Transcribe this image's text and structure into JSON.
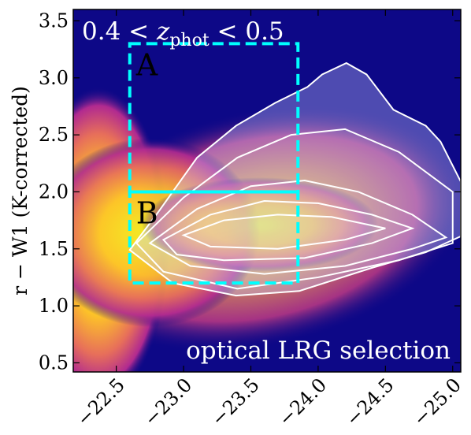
{
  "chart_data": {
    "type": "density-contour",
    "title": [
      "0.4 < ",
      "z",
      "phot",
      " < 0.5"
    ],
    "annotation": "optical LRG selection",
    "y_label": "r − W1 (K-corrected)",
    "xlim": [
      -22.18,
      -25.06
    ],
    "ylim": [
      0.42,
      3.6
    ],
    "xticks": [
      {
        "value": -22.5,
        "label": "−22.5"
      },
      {
        "value": -23.0,
        "label": "−23.0"
      },
      {
        "value": -23.5,
        "label": "−23.5"
      },
      {
        "value": -24.0,
        "label": "−24.0"
      },
      {
        "value": -24.5,
        "label": "−24.5"
      },
      {
        "value": -25.0,
        "label": "−25.0"
      }
    ],
    "yticks": [
      0.5,
      {
        "value": 1.0,
        "label": "1.0"
      },
      1.5,
      {
        "value": 2.0,
        "label": "2.0"
      },
      2.5,
      {
        "value": 3.0,
        "label": "3.0"
      },
      3.5
    ],
    "contour_color": "#ffffff",
    "contours": [
      {
        "x": [
          -22.6,
          -22.81,
          -23.1,
          -23.39,
          -23.68,
          -23.92,
          -24.03,
          -24.21,
          -24.36,
          -24.56,
          -24.8,
          -24.91,
          -25.06,
          -25.06,
          -24.8,
          -24.39,
          -23.86,
          -23.39,
          -22.92
        ],
        "y": [
          1.49,
          1.82,
          2.3,
          2.58,
          2.78,
          2.92,
          3.03,
          3.13,
          3.03,
          2.72,
          2.58,
          2.44,
          2.09,
          1.61,
          1.47,
          1.33,
          1.13,
          1.09,
          1.2
        ]
      },
      {
        "x": [
          -22.65,
          -23.0,
          -23.4,
          -23.8,
          -24.2,
          -24.6,
          -25.0,
          -25.0,
          -24.6,
          -24.0,
          -23.4,
          -22.85
        ],
        "y": [
          1.55,
          1.95,
          2.3,
          2.5,
          2.55,
          2.35,
          2.0,
          1.55,
          1.4,
          1.25,
          1.15,
          1.3
        ]
      },
      {
        "x": [
          -22.75,
          -23.1,
          -23.5,
          -23.9,
          -24.3,
          -24.7,
          -24.95,
          -24.7,
          -24.2,
          -23.6,
          -23.05
        ],
        "y": [
          1.55,
          1.85,
          2.05,
          2.1,
          2.0,
          1.8,
          1.6,
          1.5,
          1.35,
          1.28,
          1.35
        ]
      },
      {
        "x": [
          -22.85,
          -23.2,
          -23.6,
          -24.0,
          -24.4,
          -24.7,
          -24.4,
          -23.9,
          -23.3,
          -22.95
        ],
        "y": [
          1.58,
          1.8,
          1.92,
          1.9,
          1.8,
          1.68,
          1.55,
          1.42,
          1.4,
          1.45
        ]
      },
      {
        "x": [
          -23.0,
          -23.3,
          -23.7,
          -24.1,
          -24.5,
          -24.2,
          -23.7,
          -23.2
        ],
        "y": [
          1.62,
          1.75,
          1.8,
          1.78,
          1.68,
          1.58,
          1.5,
          1.52
        ]
      }
    ],
    "box_color": "#00ffff",
    "boxes": [
      {
        "label": "A",
        "x": [
          -22.6,
          -23.85
        ],
        "y": [
          2.0,
          3.3
        ]
      },
      {
        "label": "B",
        "x": [
          -22.6,
          -23.85
        ],
        "y": [
          1.2,
          2.0
        ]
      }
    ]
  }
}
